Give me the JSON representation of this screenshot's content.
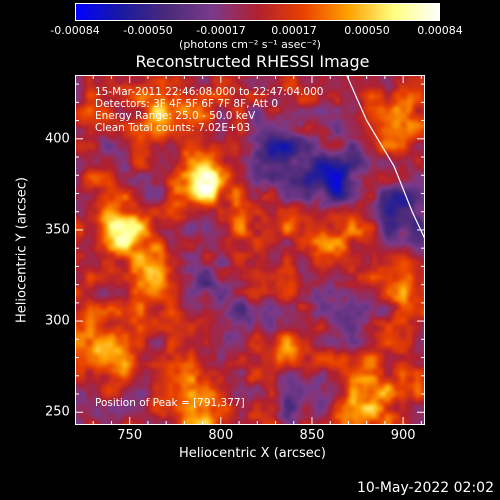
{
  "colorbar": {
    "ticks": [
      "-0.00084",
      "-0.00050",
      "-0.00017",
      "0.00017",
      "0.00050",
      "0.00084"
    ],
    "units": "(photons cm⁻² s⁻¹ asec⁻²)",
    "colors": [
      "#0000ff",
      "#1a1aa0",
      "#4a2a7a",
      "#7a3a8a",
      "#b02030",
      "#e84000",
      "#ffa000",
      "#ffff80",
      "#ffffff"
    ]
  },
  "chart_data": {
    "type": "heatmap",
    "title": "Reconstructed RHESSI Image",
    "xlabel": "Heliocentric X (arcsec)",
    "ylabel": "Heliocentric Y (arcsec)",
    "xlim": [
      720,
      912
    ],
    "ylim": [
      243,
      435
    ],
    "x_ticks": [
      750,
      800,
      850,
      900
    ],
    "y_ticks": [
      250,
      300,
      350,
      400
    ],
    "value_range": [
      -0.00084,
      0.00084
    ],
    "peak": [
      791,
      377
    ],
    "sources": [
      {
        "x": 791,
        "y": 377,
        "value": 0.00084
      },
      {
        "x": 745,
        "y": 352,
        "value": 0.00075
      },
      {
        "x": 770,
        "y": 415,
        "value": 0.0005
      },
      {
        "x": 760,
        "y": 325,
        "value": 0.0004
      },
      {
        "x": 737,
        "y": 282,
        "value": 0.0005
      },
      {
        "x": 790,
        "y": 255,
        "value": 0.00045
      },
      {
        "x": 865,
        "y": 346,
        "value": 0.00035
      },
      {
        "x": 895,
        "y": 408,
        "value": 0.00032
      },
      {
        "x": 905,
        "y": 318,
        "value": 0.0003
      },
      {
        "x": 835,
        "y": 283,
        "value": 0.00035
      },
      {
        "x": 880,
        "y": 270,
        "value": 0.0003
      },
      {
        "x": 885,
        "y": 250,
        "value": 0.0003
      },
      {
        "x": 820,
        "y": 350,
        "value": 0.0002
      },
      {
        "x": 790,
        "y": 320,
        "value": -0.0003
      },
      {
        "x": 830,
        "y": 395,
        "value": -0.0006
      },
      {
        "x": 862,
        "y": 378,
        "value": -0.0007
      },
      {
        "x": 870,
        "y": 300,
        "value": -0.0004
      },
      {
        "x": 845,
        "y": 262,
        "value": -0.0004
      },
      {
        "x": 900,
        "y": 360,
        "value": -0.0006
      },
      {
        "x": 815,
        "y": 300,
        "value": -0.0003
      }
    ],
    "limb": [
      [
        869,
        435
      ],
      [
        880,
        410
      ],
      [
        895,
        385
      ],
      [
        905,
        360
      ],
      [
        912,
        345
      ]
    ],
    "annotations": [
      "15-Mar-2011 22:46:08.000 to 22:47:04.000",
      "Detectors: 3F 4F 5F 6F 7F 8F, Att 0",
      "Energy Range: 25.0 - 50.0 keV",
      "Clean     Total counts: 7.02E+03",
      "Position of Peak = [791,377]"
    ]
  },
  "timestamp": "10-May-2022 02:02"
}
